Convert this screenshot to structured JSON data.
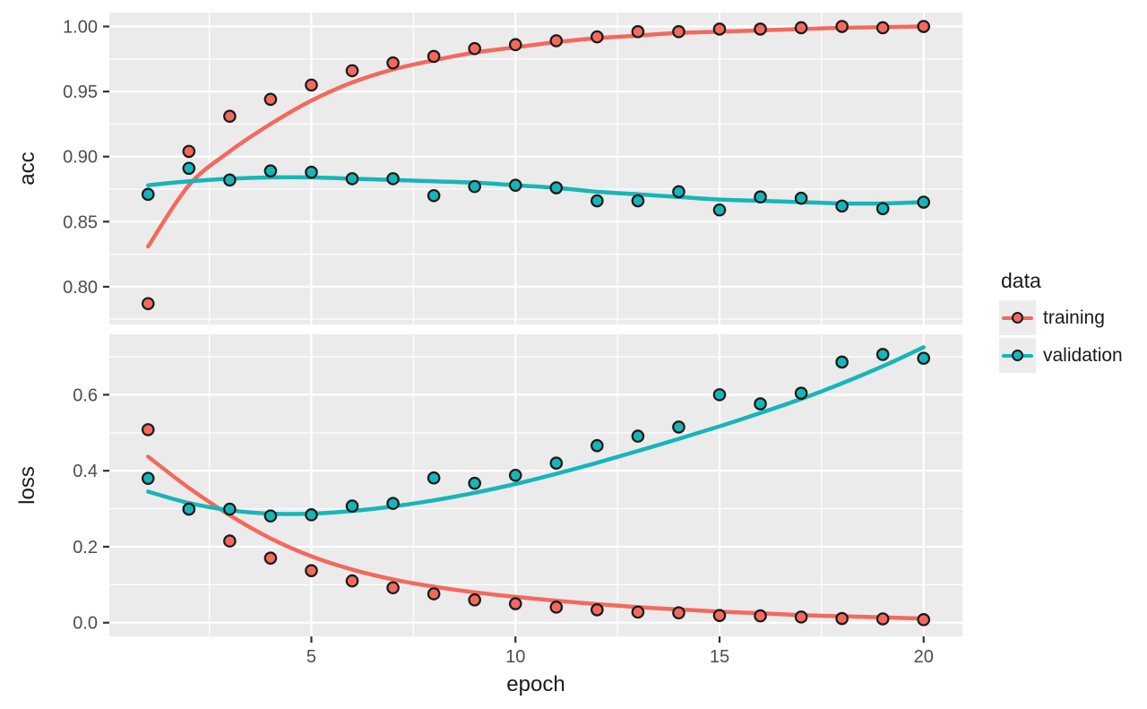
{
  "style": {
    "panel_bg": "#ebebeb",
    "grid_color": "#ffffff",
    "tick_color": "#333333",
    "point_stroke": "#1a1a1a"
  },
  "axes": {
    "x_label": "epoch"
  },
  "legend": {
    "title": "data",
    "entries": [
      {
        "label": "training",
        "color": "#f3695e"
      },
      {
        "label": "validation",
        "color": "#17b5b8"
      }
    ]
  },
  "chart_data": [
    {
      "type": "scatter",
      "facet_label": "acc",
      "x": [
        1,
        2,
        3,
        4,
        5,
        6,
        7,
        8,
        9,
        10,
        11,
        12,
        13,
        14,
        15,
        16,
        17,
        18,
        19,
        20
      ],
      "xlim": [
        0.05,
        20.95
      ],
      "xticks": {
        "values": [
          5,
          10,
          15,
          20
        ],
        "labels": [
          "5",
          "10",
          "15",
          "20"
        ]
      },
      "ylim": [
        0.771,
        1.0107
      ],
      "yticks": {
        "values": [
          0.8,
          0.85,
          0.9,
          0.95,
          1.0
        ],
        "labels": [
          "0.80",
          "0.85",
          "0.90",
          "0.95",
          "1.00"
        ]
      },
      "series": [
        {
          "name": "training",
          "color": "#f3695e",
          "values": [
            0.787,
            0.904,
            0.931,
            0.944,
            0.955,
            0.966,
            0.972,
            0.977,
            0.983,
            0.986,
            0.989,
            0.992,
            0.996,
            0.996,
            0.998,
            0.998,
            0.999,
            1.0,
            0.999,
            1.0
          ],
          "smooth": [
            0.831,
            0.878,
            0.904,
            0.925,
            0.943,
            0.957,
            0.967,
            0.974,
            0.98,
            0.984,
            0.988,
            0.991,
            0.993,
            0.995,
            0.996,
            0.997,
            0.998,
            0.999,
            0.9995,
            1.0
          ]
        },
        {
          "name": "validation",
          "color": "#17b5b8",
          "values": [
            0.871,
            0.891,
            0.882,
            0.889,
            0.888,
            0.883,
            0.883,
            0.87,
            0.877,
            0.878,
            0.876,
            0.866,
            0.866,
            0.873,
            0.859,
            0.869,
            0.868,
            0.862,
            0.86,
            0.865
          ],
          "smooth": [
            0.878,
            0.881,
            0.883,
            0.884,
            0.884,
            0.883,
            0.882,
            0.881,
            0.88,
            0.878,
            0.876,
            0.873,
            0.871,
            0.869,
            0.867,
            0.866,
            0.865,
            0.864,
            0.864,
            0.865
          ]
        }
      ]
    },
    {
      "type": "scatter",
      "facet_label": "loss",
      "x": [
        1,
        2,
        3,
        4,
        5,
        6,
        7,
        8,
        9,
        10,
        11,
        12,
        13,
        14,
        15,
        16,
        17,
        18,
        19,
        20
      ],
      "xlim": [
        0.05,
        20.95
      ],
      "xticks": {
        "values": [
          5,
          10,
          15,
          20
        ],
        "labels": [
          "5",
          "10",
          "15",
          "20"
        ]
      },
      "ylim": [
        -0.036,
        0.759
      ],
      "yticks": {
        "values": [
          0.0,
          0.2,
          0.4,
          0.6
        ],
        "labels": [
          "0.0",
          "0.2",
          "0.4",
          "0.6"
        ]
      },
      "series": [
        {
          "name": "training",
          "color": "#f3695e",
          "values": [
            0.508,
            0.299,
            0.215,
            0.17,
            0.137,
            0.11,
            0.092,
            0.076,
            0.06,
            0.05,
            0.041,
            0.034,
            0.028,
            0.026,
            0.019,
            0.018,
            0.015,
            0.011,
            0.01,
            0.008
          ],
          "smooth": [
            0.437,
            0.355,
            0.283,
            0.222,
            0.175,
            0.14,
            0.114,
            0.095,
            0.08,
            0.068,
            0.058,
            0.049,
            0.041,
            0.035,
            0.029,
            0.025,
            0.02,
            0.017,
            0.014,
            0.011
          ]
        },
        {
          "name": "validation",
          "color": "#17b5b8",
          "values": [
            0.38,
            0.299,
            0.299,
            0.281,
            0.284,
            0.307,
            0.314,
            0.381,
            0.367,
            0.388,
            0.42,
            0.466,
            0.491,
            0.515,
            0.6,
            0.576,
            0.604,
            0.686,
            0.706,
            0.696
          ],
          "smooth": [
            0.345,
            0.315,
            0.296,
            0.287,
            0.287,
            0.294,
            0.306,
            0.322,
            0.342,
            0.365,
            0.392,
            0.421,
            0.452,
            0.484,
            0.517,
            0.552,
            0.589,
            0.63,
            0.675,
            0.725
          ]
        }
      ]
    }
  ]
}
